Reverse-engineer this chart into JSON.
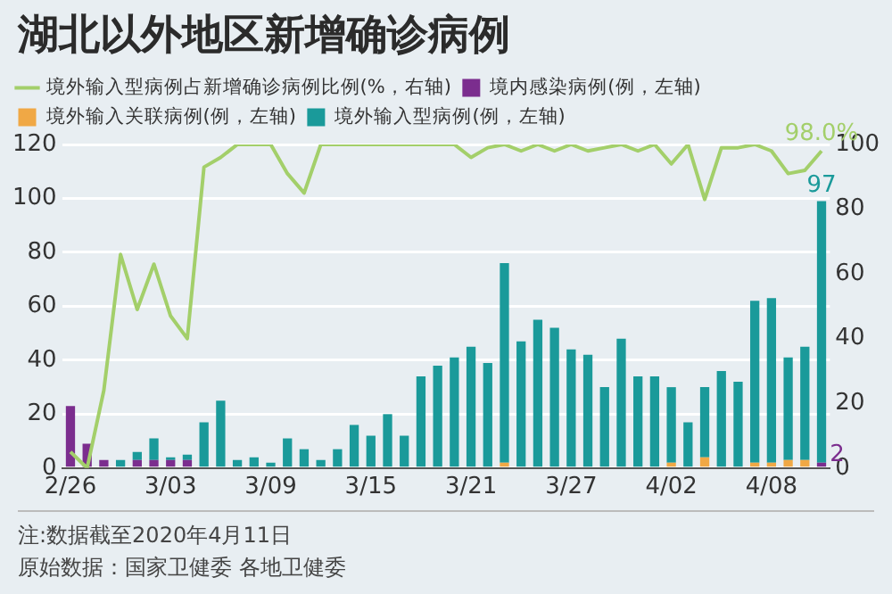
{
  "chart_data": {
    "type": "bar",
    "title": "湖北以外地区新增确诊病例",
    "stacked": true,
    "categories": [
      "2/26",
      null,
      null,
      null,
      null,
      null,
      "3/03",
      null,
      null,
      null,
      null,
      null,
      "3/09",
      null,
      null,
      null,
      null,
      null,
      "3/15",
      null,
      null,
      null,
      null,
      null,
      "3/21",
      null,
      null,
      null,
      null,
      null,
      "3/27",
      null,
      null,
      null,
      null,
      null,
      "4/02",
      null,
      null,
      null,
      null,
      null,
      "4/08",
      null,
      null,
      null
    ],
    "series": [
      {
        "name": "境内感染病例(例，左轴)",
        "color": "#7b2d8e",
        "values": [
          23,
          9,
          3,
          0,
          3,
          3,
          3,
          3,
          0,
          0,
          0,
          0,
          0,
          0,
          0,
          0,
          0,
          0,
          0,
          0,
          0,
          0,
          0,
          0,
          0,
          0,
          0,
          0,
          0,
          0,
          0,
          0,
          0,
          0,
          0,
          0,
          0,
          0,
          0,
          0,
          0,
          0,
          0,
          0,
          0,
          2
        ],
        "value_labels": [
          null,
          null,
          null,
          null,
          null,
          null,
          null,
          null,
          null,
          null,
          null,
          null,
          null,
          null,
          null,
          null,
          null,
          null,
          null,
          null,
          null,
          null,
          null,
          null,
          null,
          null,
          null,
          null,
          null,
          null,
          null,
          null,
          null,
          null,
          null,
          null,
          null,
          null,
          null,
          null,
          null,
          null,
          null,
          null,
          null,
          "2"
        ]
      },
      {
        "name": "境外输入关联病例(例，左轴)",
        "color": "#f0a845",
        "values": [
          0,
          0,
          0,
          0,
          0,
          0,
          0,
          0,
          0,
          0,
          0,
          0,
          0,
          0,
          0,
          0,
          0,
          0,
          0,
          0,
          0,
          0,
          0,
          0,
          0,
          0,
          2,
          0,
          0,
          0,
          0,
          0,
          0,
          0,
          0,
          0,
          2,
          0,
          4,
          0,
          0,
          2,
          2,
          3,
          3,
          0
        ]
      },
      {
        "name": "境外输入型病例(例，左轴)",
        "color": "#1a9a9a",
        "values": [
          0,
          0,
          0,
          3,
          3,
          8,
          1,
          2,
          17,
          25,
          3,
          4,
          2,
          11,
          7,
          3,
          7,
          16,
          12,
          20,
          12,
          34,
          38,
          41,
          45,
          39,
          74,
          47,
          55,
          52,
          44,
          42,
          30,
          48,
          34,
          34,
          28,
          17,
          26,
          36,
          32,
          60,
          61,
          38,
          42,
          97
        ],
        "value_labels": [
          null,
          null,
          null,
          null,
          null,
          null,
          null,
          null,
          null,
          null,
          null,
          null,
          null,
          null,
          null,
          null,
          null,
          null,
          null,
          null,
          null,
          null,
          null,
          null,
          null,
          null,
          null,
          null,
          null,
          null,
          null,
          null,
          null,
          null,
          null,
          null,
          null,
          null,
          null,
          null,
          null,
          null,
          null,
          null,
          null,
          "97"
        ]
      },
      {
        "name": "境外输入型病例占新增确诊病例比例(%，右轴)",
        "type": "line",
        "axis": "y2",
        "color": "#a3cf6a",
        "values": [
          5,
          0,
          24,
          66,
          49,
          63,
          47,
          40,
          93,
          96,
          100,
          100,
          100,
          91,
          85,
          100,
          100,
          100,
          100,
          100,
          100,
          100,
          100,
          100,
          96,
          99,
          100,
          98,
          100,
          98,
          100,
          98,
          99,
          100,
          98,
          100,
          94,
          100,
          83,
          99,
          99,
          100,
          98,
          91,
          92,
          98
        ],
        "value_labels": [
          null,
          null,
          null,
          null,
          null,
          null,
          null,
          null,
          null,
          null,
          null,
          null,
          null,
          null,
          null,
          null,
          null,
          null,
          null,
          null,
          null,
          null,
          null,
          null,
          null,
          null,
          null,
          null,
          null,
          null,
          null,
          null,
          null,
          null,
          null,
          null,
          null,
          null,
          null,
          null,
          null,
          null,
          null,
          null,
          null,
          "98.0%"
        ]
      }
    ],
    "ylim": [
      0,
      120
    ],
    "yticks": [
      0,
      20,
      40,
      60,
      80,
      100,
      120
    ],
    "y2lim": [
      0,
      100
    ],
    "y2ticks": [
      0,
      20,
      40,
      60,
      80,
      100
    ],
    "grid": "y",
    "legend": "top",
    "marker": "none",
    "annotations": [
      "注:数据截至2020年4月11日",
      "原始数据：国家卫健委 各地卫健委"
    ]
  }
}
